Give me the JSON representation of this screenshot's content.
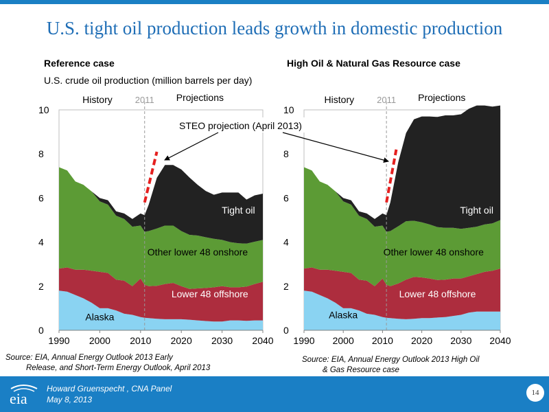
{
  "slide": {
    "title": "U.S. tight oil production leads growth in domestic production",
    "unit_label": "U.S. crude oil production (million barrels per day)",
    "annotation": "STEO projection (April 2013)"
  },
  "footer": {
    "presenter": "Howard Gruenspecht ,  CNA Panel",
    "date": "May 8, 2013",
    "page_number": "14",
    "logo_text": "eia"
  },
  "sources": {
    "left_line1": "Source:  EIA, Annual Energy Outlook 2013 Early",
    "left_line2": "Release, and Short-Term Energy Outlook, April 2013",
    "right_line1": "Source:  EIA, Annual Energy Outlook 2013 High Oil",
    "right_line2": "& Gas Resource case"
  },
  "colors": {
    "alaska": "#8ad3f2",
    "offshore": "#ad2d3e",
    "onshore": "#5c9b35",
    "tight": "#222222",
    "steo": "#e5201f",
    "title": "#1f6eb6",
    "footer": "#1a7fc5"
  },
  "chart_data": [
    {
      "type": "area",
      "title": "Reference case",
      "ylim": [
        0,
        10
      ],
      "xlim": [
        1990,
        2040
      ],
      "xticks": [
        "1990",
        "2000",
        "2010",
        "2020",
        "2030",
        "2040"
      ],
      "yticks": [
        "0",
        "2",
        "4",
        "6",
        "8",
        "10"
      ],
      "history_label": "History",
      "projection_label": "Projections",
      "divider_label": "2011",
      "divider_year": 2011,
      "x": [
        1990,
        1992,
        1994,
        1996,
        1998,
        2000,
        2002,
        2004,
        2006,
        2008,
        2010,
        2011,
        2012,
        2014,
        2016,
        2018,
        2020,
        2022,
        2024,
        2026,
        2028,
        2030,
        2032,
        2034,
        2036,
        2038,
        2040
      ],
      "series": [
        {
          "name": "Alaska",
          "values": [
            1.8,
            1.75,
            1.6,
            1.45,
            1.25,
            1.0,
            1.0,
            0.9,
            0.75,
            0.7,
            0.6,
            0.57,
            0.55,
            0.52,
            0.5,
            0.5,
            0.5,
            0.48,
            0.45,
            0.42,
            0.4,
            0.4,
            0.45,
            0.45,
            0.43,
            0.45,
            0.45
          ]
        },
        {
          "name": "Lower 48 offshore",
          "values": [
            1.0,
            1.1,
            1.15,
            1.3,
            1.45,
            1.65,
            1.6,
            1.4,
            1.5,
            1.3,
            1.75,
            1.5,
            1.45,
            1.5,
            1.6,
            1.65,
            1.5,
            1.4,
            1.45,
            1.5,
            1.55,
            1.6,
            1.5,
            1.5,
            1.55,
            1.65,
            1.75
          ]
        },
        {
          "name": "Other lower 48 onshore",
          "values": [
            4.6,
            4.4,
            4.0,
            3.85,
            3.6,
            3.2,
            3.1,
            2.9,
            2.8,
            2.7,
            2.4,
            2.4,
            2.5,
            2.6,
            2.65,
            2.6,
            2.5,
            2.45,
            2.4,
            2.3,
            2.2,
            2.1,
            2.05,
            2.0,
            1.95,
            1.92,
            1.9
          ]
        },
        {
          "name": "Tight oil",
          "values": [
            0,
            0,
            0,
            0,
            0,
            0.15,
            0.2,
            0.2,
            0.25,
            0.35,
            0.55,
            0.75,
            1.2,
            2.3,
            2.75,
            2.75,
            2.8,
            2.6,
            2.3,
            2.1,
            2.0,
            2.15,
            2.25,
            2.3,
            2.0,
            2.1,
            2.1
          ]
        }
      ],
      "series_labels": [
        "Alaska",
        "Lower 48 offshore",
        "Other lower 48 onshore",
        "Tight oil"
      ],
      "steo": {
        "x": [
          2011,
          2014
        ],
        "y": [
          5.8,
          8.1
        ]
      }
    },
    {
      "type": "area",
      "title": "High Oil & Natural Gas Resource case",
      "ylim": [
        0,
        10
      ],
      "xlim": [
        1990,
        2040
      ],
      "xticks": [
        "1990",
        "2000",
        "2010",
        "2020",
        "2030",
        "2040"
      ],
      "yticks": [
        "0",
        "2",
        "4",
        "6",
        "8",
        "10"
      ],
      "history_label": "History",
      "projection_label": "Projections",
      "divider_label": "2011",
      "divider_year": 2011,
      "x": [
        1990,
        1992,
        1994,
        1996,
        1998,
        2000,
        2002,
        2004,
        2006,
        2008,
        2010,
        2011,
        2012,
        2014,
        2016,
        2018,
        2020,
        2022,
        2024,
        2026,
        2028,
        2030,
        2032,
        2034,
        2036,
        2038,
        2040
      ],
      "series": [
        {
          "name": "Alaska",
          "values": [
            1.8,
            1.75,
            1.6,
            1.45,
            1.25,
            1.0,
            1.0,
            0.9,
            0.75,
            0.7,
            0.6,
            0.57,
            0.55,
            0.52,
            0.5,
            0.52,
            0.55,
            0.55,
            0.58,
            0.6,
            0.65,
            0.7,
            0.8,
            0.85,
            0.85,
            0.85,
            0.85
          ]
        },
        {
          "name": "Lower 48 offshore",
          "values": [
            1.0,
            1.1,
            1.15,
            1.3,
            1.45,
            1.65,
            1.6,
            1.4,
            1.5,
            1.3,
            1.75,
            1.5,
            1.45,
            1.6,
            1.8,
            1.9,
            1.85,
            1.8,
            1.7,
            1.7,
            1.7,
            1.65,
            1.65,
            1.7,
            1.8,
            1.85,
            1.95
          ]
        },
        {
          "name": "Other lower 48 onshore",
          "values": [
            4.6,
            4.4,
            4.0,
            3.85,
            3.6,
            3.2,
            3.1,
            2.9,
            2.8,
            2.7,
            2.4,
            2.4,
            2.5,
            2.6,
            2.65,
            2.55,
            2.5,
            2.45,
            2.4,
            2.35,
            2.3,
            2.25,
            2.2,
            2.15,
            2.15,
            2.15,
            2.2
          ]
        },
        {
          "name": "Tight oil",
          "values": [
            0,
            0,
            0,
            0,
            0,
            0.15,
            0.2,
            0.2,
            0.25,
            0.35,
            0.55,
            0.75,
            1.3,
            2.9,
            4.0,
            4.6,
            4.8,
            4.9,
            5.0,
            5.1,
            5.1,
            5.2,
            5.4,
            5.5,
            5.4,
            5.3,
            5.2
          ]
        }
      ],
      "series_labels": [
        "Alaska",
        "Lower 48 offshore",
        "Other lower 48 onshore",
        "Tight oil"
      ],
      "steo": {
        "x": [
          2011,
          2013.5
        ],
        "y": [
          5.8,
          8.2
        ]
      }
    }
  ]
}
